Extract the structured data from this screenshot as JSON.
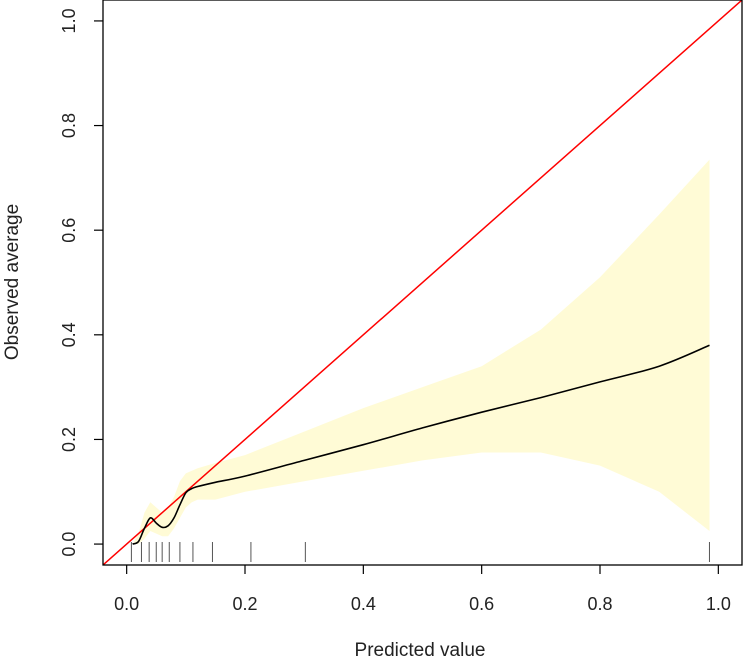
{
  "chart_data": {
    "type": "line",
    "title": "",
    "xlabel": "Predicted value",
    "ylabel": "Observed average",
    "xlim": [
      -0.04,
      1.04
    ],
    "ylim": [
      -0.04,
      1.04
    ],
    "x_ticks": [
      0.0,
      0.2,
      0.4,
      0.6,
      0.8,
      1.0
    ],
    "x_tick_labels": [
      "0.0",
      "0.2",
      "0.4",
      "0.6",
      "0.8",
      "1.0"
    ],
    "y_ticks": [
      0.0,
      0.2,
      0.4,
      0.6,
      0.8,
      1.0
    ],
    "y_tick_labels": [
      "0.0",
      "0.2",
      "0.4",
      "0.6",
      "0.8",
      "1.0"
    ],
    "grid": false,
    "colors": {
      "curve": "#000000",
      "diagonal": "#ff0000",
      "band": "#fffbd6",
      "rug": "#555555"
    },
    "diagonal": {
      "x": [
        -0.04,
        1.04
      ],
      "y": [
        -0.04,
        1.04
      ]
    },
    "series": [
      {
        "x": [
          0.01,
          0.02,
          0.03,
          0.04,
          0.05,
          0.06,
          0.07,
          0.08,
          0.09,
          0.1,
          0.11,
          0.12,
          0.15,
          0.2,
          0.3,
          0.4,
          0.5,
          0.6,
          0.7,
          0.8,
          0.9,
          0.985
        ],
        "y": [
          0.0,
          0.005,
          0.03,
          0.05,
          0.04,
          0.032,
          0.035,
          0.05,
          0.075,
          0.098,
          0.106,
          0.11,
          0.118,
          0.13,
          0.16,
          0.19,
          0.222,
          0.252,
          0.28,
          0.31,
          0.34,
          0.38
        ]
      }
    ],
    "confidence_band": {
      "x": [
        0.01,
        0.02,
        0.03,
        0.04,
        0.05,
        0.06,
        0.07,
        0.08,
        0.09,
        0.1,
        0.11,
        0.12,
        0.15,
        0.2,
        0.3,
        0.4,
        0.5,
        0.6,
        0.7,
        0.8,
        0.9,
        0.985
      ],
      "lower": [
        0.0,
        0.0,
        0.01,
        0.025,
        0.02,
        0.015,
        0.015,
        0.03,
        0.05,
        0.07,
        0.08,
        0.085,
        0.085,
        0.1,
        0.12,
        0.14,
        0.16,
        0.175,
        0.175,
        0.15,
        0.1,
        0.025
      ],
      "upper": [
        0.0,
        0.02,
        0.06,
        0.08,
        0.07,
        0.06,
        0.07,
        0.09,
        0.12,
        0.135,
        0.14,
        0.145,
        0.155,
        0.17,
        0.215,
        0.26,
        0.3,
        0.34,
        0.41,
        0.51,
        0.63,
        0.735
      ]
    },
    "rug_x": [
      0.008,
      0.025,
      0.038,
      0.05,
      0.06,
      0.072,
      0.09,
      0.112,
      0.145,
      0.21,
      0.302,
      0.985
    ]
  }
}
